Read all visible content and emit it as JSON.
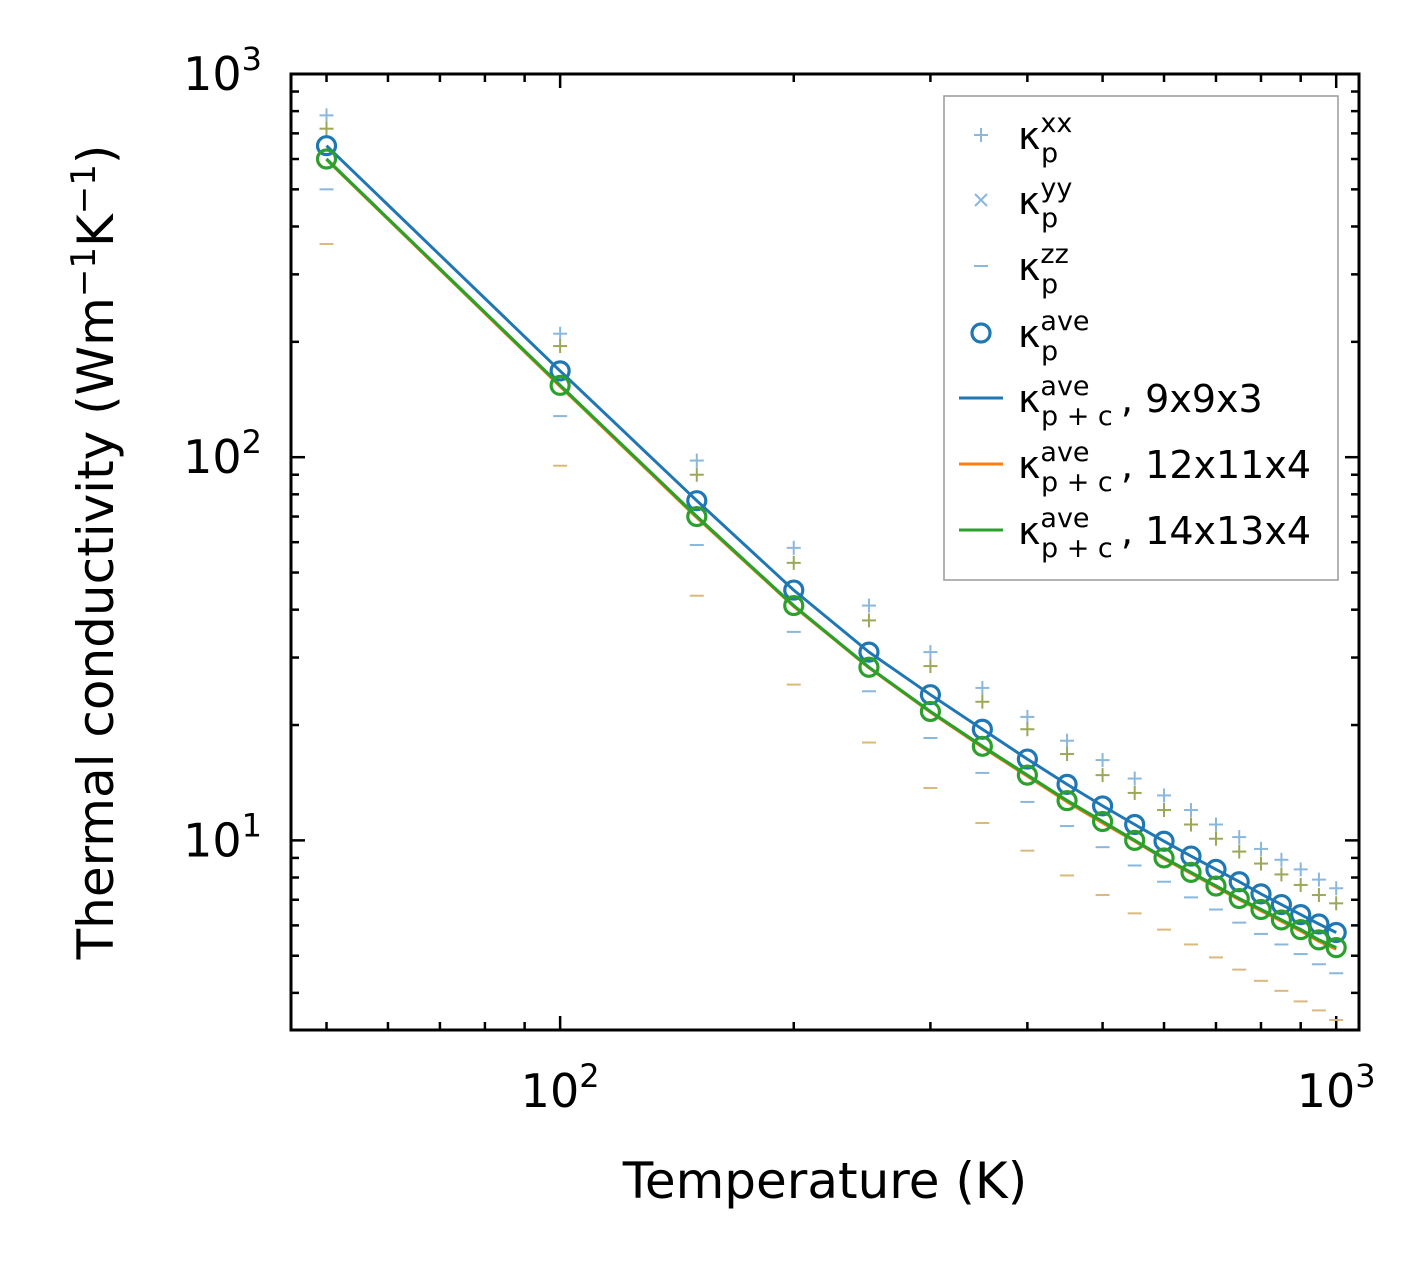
{
  "chart_data": {
    "type": "scatter",
    "xscale": "log",
    "yscale": "log",
    "xlabel": "Temperature (K)",
    "ylabel_parts": [
      "Thermal conductivity (Wm",
      "−1",
      "K",
      "−1",
      ")"
    ],
    "xlim": [
      45,
      1070
    ],
    "ylim": [
      3.2,
      1000
    ],
    "xticks": [
      {
        "base": "10",
        "exp": "2",
        "value": 100
      },
      {
        "base": "10",
        "exp": "3",
        "value": 1000
      }
    ],
    "yticks": [
      {
        "base": "10",
        "exp": "1",
        "value": 10
      },
      {
        "base": "10",
        "exp": "2",
        "value": 100
      },
      {
        "base": "10",
        "exp": "3",
        "value": 1000
      }
    ],
    "x": [
      50,
      100,
      150,
      200,
      250,
      300,
      350,
      400,
      450,
      500,
      550,
      600,
      650,
      700,
      750,
      800,
      850,
      900,
      950,
      1000
    ],
    "series": [
      {
        "name": "kxx_9",
        "group": "pc",
        "marker": "plus",
        "color": "#8ab7dc",
        "values": [
          780,
          210,
          98,
          58,
          41,
          31,
          25,
          21,
          18.2,
          16.2,
          14.5,
          13.1,
          12.0,
          11.0,
          10.2,
          9.5,
          8.9,
          8.4,
          7.9,
          7.5
        ]
      },
      {
        "name": "kzz_9",
        "group": "pc",
        "marker": "dash",
        "color": "#8ab7dc",
        "values": [
          500,
          128,
          59,
          35,
          24.5,
          18.5,
          15,
          12.6,
          10.9,
          9.6,
          8.6,
          7.8,
          7.1,
          6.6,
          6.1,
          5.7,
          5.35,
          5.05,
          4.75,
          4.5
        ]
      },
      {
        "name": "kxx_14",
        "group": "pc",
        "marker": "plus",
        "color": "#9aa857",
        "values": [
          720,
          195,
          90,
          53,
          37.5,
          28.5,
          23,
          19.5,
          16.8,
          14.8,
          13.3,
          12.0,
          11.0,
          10.1,
          9.35,
          8.7,
          8.15,
          7.65,
          7.2,
          6.85
        ]
      },
      {
        "name": "kzz_14",
        "group": "pc",
        "marker": "dash",
        "color": "#d9b97d",
        "values": [
          360,
          95,
          43.5,
          25.5,
          18,
          13.7,
          11.1,
          9.4,
          8.1,
          7.2,
          6.45,
          5.85,
          5.35,
          4.95,
          4.6,
          4.3,
          4.05,
          3.8,
          3.6,
          3.4
        ]
      },
      {
        "name": "kave_9",
        "group": "ave",
        "marker": "circle",
        "color": "#1f77b4",
        "values": [
          650,
          168,
          77,
          45,
          31,
          24,
          19.5,
          16.3,
          14.0,
          12.3,
          11.0,
          9.95,
          9.1,
          8.4,
          7.8,
          7.25,
          6.8,
          6.4,
          6.05,
          5.75
        ]
      },
      {
        "name": "kave_14",
        "group": "ave",
        "marker": "circle",
        "color": "#2ca02c",
        "values": [
          600,
          154,
          70,
          41,
          28.3,
          21.7,
          17.6,
          14.8,
          12.7,
          11.2,
          10.0,
          9.0,
          8.25,
          7.6,
          7.05,
          6.6,
          6.2,
          5.85,
          5.5,
          5.25
        ]
      },
      {
        "name": "line_9x9x3",
        "group": "line",
        "marker": "line",
        "color": "#1f77b4",
        "values": [
          650,
          168,
          77,
          45,
          31,
          24,
          19.5,
          16.3,
          14.0,
          12.3,
          11.0,
          9.95,
          9.1,
          8.4,
          7.8,
          7.25,
          6.8,
          6.4,
          6.05,
          5.75
        ]
      },
      {
        "name": "line_12x11x4",
        "group": "line",
        "marker": "line",
        "color": "#ff7f0e",
        "values": [
          598,
          153,
          69.5,
          40.8,
          28.2,
          21.6,
          17.5,
          14.7,
          12.6,
          11.1,
          9.95,
          8.95,
          8.2,
          7.55,
          7.0,
          6.55,
          6.15,
          5.8,
          5.45,
          5.2
        ]
      },
      {
        "name": "line_14x13x4",
        "group": "line",
        "marker": "line",
        "color": "#2ca02c",
        "values": [
          600,
          154,
          70,
          41,
          28.3,
          21.7,
          17.6,
          14.8,
          12.7,
          11.2,
          10.0,
          9.0,
          8.25,
          7.6,
          7.05,
          6.6,
          6.2,
          5.85,
          5.5,
          5.25
        ]
      }
    ],
    "legend": {
      "position": "top-right",
      "entries": [
        {
          "marker": "plus",
          "color": "#8ab7dc",
          "symbol": "κ",
          "sup": "xx",
          "sub": "p",
          "suffix": ""
        },
        {
          "marker": "cross",
          "color": "#8ab7dc",
          "symbol": "κ",
          "sup": "yy",
          "sub": "p",
          "suffix": ""
        },
        {
          "marker": "dash",
          "color": "#8ab7dc",
          "symbol": "κ",
          "sup": "zz",
          "sub": "p",
          "suffix": ""
        },
        {
          "marker": "circle",
          "color": "#1f77b4",
          "symbol": "κ",
          "sup": "ave",
          "sub": "p",
          "suffix": ""
        },
        {
          "marker": "line",
          "color": "#1f77b4",
          "symbol": "κ",
          "sup": "ave",
          "sub": "p + c",
          "suffix": ", 9x9x3"
        },
        {
          "marker": "line",
          "color": "#ff7f0e",
          "symbol": "κ",
          "sup": "ave",
          "sub": "p + c",
          "suffix": ", 12x11x4"
        },
        {
          "marker": "line",
          "color": "#2ca02c",
          "symbol": "κ",
          "sup": "ave",
          "sub": "p + c",
          "suffix": ", 14x13x4"
        }
      ]
    }
  }
}
